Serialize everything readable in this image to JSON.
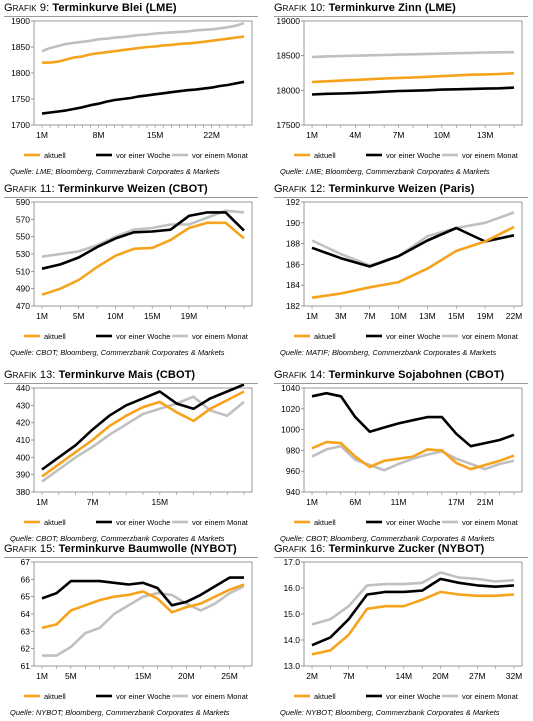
{
  "legend_labels": [
    "aktuell",
    "vor einer Woche",
    "vor einem Monat"
  ],
  "colors": {
    "aktuell": "#f7a21b",
    "vor einer Woche": "#000000",
    "vor einem Monat": "#c0c0c0"
  },
  "charts": [
    {
      "prefix": "Grafik 9:",
      "title": "Terminkurve Blei (LME)",
      "source": "Quelle: LME; Bloomberg, Commerzbank Corporates & Markets"
    },
    {
      "prefix": "Grafik 10:",
      "title": "Terminkurve Zinn (LME)",
      "source": "Quelle: LME; Bloomberg, Commerzbank Corporates & Markets"
    },
    {
      "prefix": "Grafik 11:",
      "title": "Terminkurve Weizen (CBOT)",
      "source": "Quelle: CBOT; Bloomberg, Commerzbank Corporates & Markets"
    },
    {
      "prefix": "Grafik 12:",
      "title": "Terminkurve Weizen (Paris)",
      "source": "Quelle: MATIF; Bloomberg, Commerzbank Corporates & Markets"
    },
    {
      "prefix": "Grafik 13:",
      "title": "Terminkurve Mais (CBOT)",
      "source": "Quelle: CBOT; Bloomberg, Commerzbank Corporates & Markets"
    },
    {
      "prefix": "Grafik 14:",
      "title": "Terminkurve Sojabohnen (CBOT)",
      "source": "Quelle: CBOT; Bloomberg, Commerzbank Corporates & Markets"
    },
    {
      "prefix": "Grafik 15:",
      "title": "Terminkurve Baumwolle (NYBOT)",
      "source": "Quelle: NYBOT; Bloomberg, Commerzbank Corporates & Markets"
    },
    {
      "prefix": "Grafik 16:",
      "title": "Terminkurve Zucker (NYBOT)",
      "source": "Quelle: NYBOT; Bloomberg, Commerzbank Corporates & Markets"
    }
  ],
  "chart_data": [
    {
      "type": "line",
      "title": "Terminkurve Blei (LME)",
      "ylim": [
        1700,
        1900
      ],
      "yticks": [
        1700,
        1750,
        1800,
        1850,
        1900
      ],
      "ytick_labels": [
        "1700",
        "1750",
        "1800",
        "1850",
        "1900"
      ],
      "x": [
        "1M",
        "2M",
        "3M",
        "4M",
        "5M",
        "6M",
        "7M",
        "8M",
        "9M",
        "10M",
        "11M",
        "12M",
        "13M",
        "14M",
        "15M",
        "16M",
        "17M",
        "18M",
        "19M",
        "20M",
        "21M",
        "22M",
        "23M",
        "24M",
        "25M",
        "26M"
      ],
      "xtick_labels": [
        "1M",
        "8M",
        "15M",
        "22M"
      ],
      "series": [
        {
          "name": "aktuell",
          "values": [
            1820,
            1820,
            1822,
            1826,
            1830,
            1832,
            1836,
            1838,
            1840,
            1842,
            1844,
            1846,
            1848,
            1850,
            1851,
            1853,
            1854,
            1856,
            1857,
            1858,
            1860,
            1862,
            1864,
            1866,
            1868,
            1870
          ]
        },
        {
          "name": "vor einer Woche",
          "values": [
            1722,
            1724,
            1726,
            1728,
            1731,
            1734,
            1738,
            1741,
            1745,
            1748,
            1750,
            1752,
            1755,
            1757,
            1759,
            1761,
            1763,
            1765,
            1767,
            1768,
            1770,
            1772,
            1775,
            1777,
            1780,
            1783
          ]
        },
        {
          "name": "vor einem Monat",
          "values": [
            1842,
            1848,
            1852,
            1856,
            1858,
            1860,
            1862,
            1865,
            1866,
            1868,
            1869,
            1871,
            1873,
            1874,
            1876,
            1877,
            1878,
            1879,
            1880,
            1882,
            1883,
            1884,
            1886,
            1888,
            1891,
            1896
          ]
        }
      ]
    },
    {
      "type": "line",
      "title": "Terminkurve Zinn (LME)",
      "ylim": [
        17500,
        19000
      ],
      "yticks": [
        17500,
        18000,
        18500,
        19000
      ],
      "ytick_labels": [
        "17500",
        "18000",
        "18500",
        "19000"
      ],
      "x": [
        "1M",
        "2M",
        "3M",
        "4M",
        "5M",
        "6M",
        "7M",
        "8M",
        "9M",
        "10M",
        "11M",
        "12M",
        "13M",
        "14M",
        "15M"
      ],
      "xtick_labels": [
        "1M",
        "4M",
        "7M",
        "10M",
        "13M"
      ],
      "series": [
        {
          "name": "aktuell",
          "values": [
            18120,
            18130,
            18140,
            18150,
            18160,
            18170,
            18180,
            18185,
            18195,
            18205,
            18215,
            18225,
            18230,
            18235,
            18245
          ]
        },
        {
          "name": "vor einer Woche",
          "values": [
            17940,
            17950,
            17955,
            17960,
            17970,
            17980,
            17990,
            17995,
            18000,
            18010,
            18015,
            18020,
            18025,
            18030,
            18040
          ]
        },
        {
          "name": "vor einem Monat",
          "values": [
            18480,
            18490,
            18495,
            18500,
            18505,
            18510,
            18515,
            18520,
            18525,
            18530,
            18535,
            18540,
            18545,
            18548,
            18550
          ]
        }
      ]
    },
    {
      "type": "line",
      "title": "Terminkurve Weizen (CBOT)",
      "ylim": [
        470,
        590
      ],
      "yticks": [
        470,
        490,
        510,
        530,
        550,
        570,
        590
      ],
      "ytick_labels": [
        "470",
        "490",
        "510",
        "530",
        "550",
        "570",
        "590"
      ],
      "x": [
        "1M",
        "3M",
        "5M",
        "7M",
        "10M",
        "12M",
        "15M",
        "17M",
        "19M",
        "21M",
        "23M",
        "25M"
      ],
      "xtick_labels": [
        "1M",
        "5M",
        "10M",
        "15M",
        "19M"
      ],
      "series": [
        {
          "name": "aktuell",
          "values": [
            483,
            490,
            500,
            515,
            528,
            536,
            537,
            546,
            560,
            566,
            566,
            548
          ]
        },
        {
          "name": "vor einer Woche",
          "values": [
            513,
            518,
            526,
            538,
            548,
            555,
            556,
            558,
            574,
            578,
            578,
            557
          ]
        },
        {
          "name": "vor einem Monat",
          "values": [
            527,
            530,
            533,
            540,
            550,
            558,
            560,
            564,
            564,
            572,
            580,
            578
          ]
        }
      ]
    },
    {
      "type": "line",
      "title": "Terminkurve Weizen (Paris)",
      "ylim": [
        182,
        192
      ],
      "yticks": [
        182,
        184,
        186,
        188,
        190,
        192
      ],
      "ytick_labels": [
        "182",
        "184",
        "186",
        "188",
        "190",
        "192"
      ],
      "x": [
        "1M",
        "3M",
        "7M",
        "10M",
        "13M",
        "15M",
        "19M",
        "22M"
      ],
      "xtick_labels": [
        "1M",
        "3M",
        "7M",
        "10M",
        "13M",
        "15M",
        "19M",
        "22M"
      ],
      "series": [
        {
          "name": "aktuell",
          "values": [
            182.8,
            183.2,
            183.8,
            184.3,
            185.6,
            187.3,
            188.2,
            189.6
          ]
        },
        {
          "name": "vor einer Woche",
          "values": [
            187.6,
            186.6,
            185.8,
            186.8,
            188.3,
            189.5,
            188.2,
            188.8
          ]
        },
        {
          "name": "vor einem Monat",
          "values": [
            188.3,
            187.0,
            185.9,
            186.8,
            188.7,
            189.5,
            190.0,
            191.0
          ]
        }
      ]
    },
    {
      "type": "line",
      "title": "Terminkurve Mais (CBOT)",
      "ylim": [
        380,
        440
      ],
      "yticks": [
        380,
        390,
        400,
        410,
        420,
        430,
        440
      ],
      "ytick_labels": [
        "380",
        "390",
        "400",
        "410",
        "420",
        "430",
        "440"
      ],
      "x": [
        "1M",
        "3M",
        "5M",
        "7M",
        "9M",
        "11M",
        "13M",
        "15M",
        "17M",
        "19M",
        "21M",
        "23M",
        "25M"
      ],
      "xtick_labels": [
        "1M",
        "7M",
        "15M",
        "22M"
      ],
      "series": [
        {
          "name": "aktuell",
          "values": [
            389,
            396,
            403,
            410,
            418,
            424,
            429,
            432,
            426,
            421,
            428,
            433,
            438
          ]
        },
        {
          "name": "vor einer Woche",
          "values": [
            393,
            400,
            407,
            416,
            424,
            430,
            434,
            438,
            431,
            428,
            434,
            438,
            442
          ]
        },
        {
          "name": "vor einem Monat",
          "values": [
            386,
            393,
            400,
            406,
            413,
            419,
            425,
            428,
            431,
            435,
            427,
            424,
            432
          ]
        }
      ]
    },
    {
      "type": "line",
      "title": "Terminkurve Sojabohnen (CBOT)",
      "ylim": [
        940,
        1040
      ],
      "yticks": [
        940,
        960,
        980,
        1000,
        1020,
        1040
      ],
      "ytick_labels": [
        "940",
        "960",
        "980",
        "1000",
        "1020",
        "1040"
      ],
      "x": [
        "1M",
        "3M",
        "5M",
        "6M",
        "8M",
        "9M",
        "11M",
        "13M",
        "15M",
        "16M",
        "17M",
        "19M",
        "21M",
        "23M",
        "25M"
      ],
      "xtick_labels": [
        "1M",
        "6M",
        "11M",
        "17M",
        "21M"
      ],
      "series": [
        {
          "name": "aktuell",
          "values": [
            982,
            988,
            987,
            974,
            964,
            970,
            972,
            974,
            981,
            980,
            968,
            962,
            966,
            970,
            975
          ]
        },
        {
          "name": "vor einer Woche",
          "values": [
            1032,
            1035,
            1032,
            1012,
            998,
            1002,
            1006,
            1009,
            1012,
            1012,
            996,
            984,
            987,
            990,
            995
          ]
        },
        {
          "name": "vor einem Monat",
          "values": [
            974,
            981,
            984,
            971,
            966,
            961,
            967,
            972,
            976,
            979,
            972,
            967,
            962,
            967,
            970
          ]
        }
      ]
    },
    {
      "type": "line",
      "title": "Terminkurve Baumwolle (NYBOT)",
      "ylim": [
        61,
        67
      ],
      "yticks": [
        61,
        62,
        63,
        64,
        65,
        66,
        67
      ],
      "ytick_labels": [
        "61",
        "62",
        "63",
        "64",
        "65",
        "66",
        "67"
      ],
      "x": [
        "1M",
        "3M",
        "5M",
        "7M",
        "9M",
        "11M",
        "13M",
        "15M",
        "17M",
        "19M",
        "20M",
        "21M",
        "23M",
        "25M",
        "27M"
      ],
      "xtick_labels": [
        "1M",
        "5M",
        "10M",
        "15M",
        "20M",
        "25M"
      ],
      "series": [
        {
          "name": "aktuell",
          "values": [
            63.2,
            63.4,
            64.2,
            64.5,
            64.8,
            65.0,
            65.1,
            65.3,
            64.9,
            64.1,
            64.4,
            64.6,
            65.0,
            65.4,
            65.7
          ]
        },
        {
          "name": "vor einer Woche",
          "values": [
            64.9,
            65.2,
            65.9,
            65.9,
            65.9,
            65.8,
            65.7,
            65.8,
            65.5,
            64.5,
            64.7,
            65.1,
            65.6,
            66.1,
            66.1
          ]
        },
        {
          "name": "vor einem Monat",
          "values": [
            61.6,
            61.6,
            62.1,
            62.9,
            63.2,
            64.0,
            64.5,
            65.0,
            65.2,
            65.1,
            64.6,
            64.2,
            64.6,
            65.2,
            65.6
          ]
        }
      ]
    },
    {
      "type": "line",
      "title": "Terminkurve Zucker (NYBOT)",
      "ylim": [
        13.0,
        17.0
      ],
      "yticks": [
        13.0,
        14.0,
        15.0,
        16.0,
        17.0
      ],
      "ytick_labels": [
        "13.0",
        "14.0",
        "15.0",
        "16.0",
        "17.0"
      ],
      "x": [
        "2M",
        "5M",
        "7M",
        "9M",
        "11M",
        "14M",
        "17M",
        "20M",
        "24M",
        "27M",
        "30M",
        "32M"
      ],
      "xtick_labels": [
        "2M",
        "7M",
        "14M",
        "20M",
        "27M",
        "32M"
      ],
      "series": [
        {
          "name": "aktuell",
          "values": [
            13.45,
            13.6,
            14.2,
            15.2,
            15.3,
            15.3,
            15.55,
            15.85,
            15.75,
            15.7,
            15.7,
            15.75
          ]
        },
        {
          "name": "vor einer Woche",
          "values": [
            13.8,
            14.1,
            14.8,
            15.75,
            15.85,
            15.85,
            15.9,
            16.35,
            16.2,
            16.1,
            16.05,
            16.1
          ]
        },
        {
          "name": "vor einem Monat",
          "values": [
            14.6,
            14.8,
            15.3,
            16.1,
            16.15,
            16.15,
            16.2,
            16.6,
            16.4,
            16.35,
            16.25,
            16.3
          ]
        }
      ]
    }
  ]
}
